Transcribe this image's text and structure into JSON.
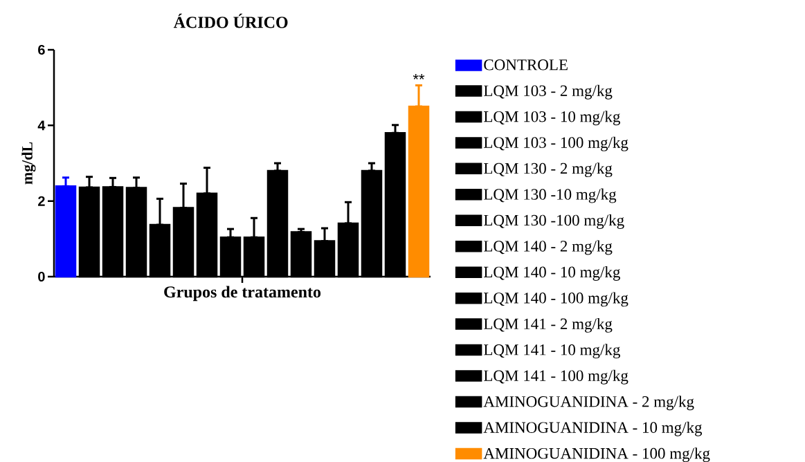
{
  "chart_data": {
    "type": "bar",
    "title": "ÁCIDO ÚRICO",
    "xlabel": "Grupos de tratamento",
    "ylabel": "mg/dL",
    "categories": [
      null
    ],
    "series": [
      {
        "name": "CONTROLE",
        "color": "#0000ff",
        "values": [
          2.39
        ],
        "errors": [
          [
            2.39,
            2.62
          ]
        ]
      },
      {
        "name": "LQM 103 - 2 mg/kg",
        "color": "#000000",
        "values": [
          2.36
        ],
        "errors": [
          [
            2.36,
            2.64
          ]
        ]
      },
      {
        "name": "LQM 103 - 10 mg/kg",
        "color": "#000000",
        "values": [
          2.37
        ],
        "errors": [
          [
            2.37,
            2.61
          ]
        ]
      },
      {
        "name": "LQM 103 - 100 mg/kg",
        "color": "#000000",
        "values": [
          2.35
        ],
        "errors": [
          [
            2.35,
            2.62
          ]
        ]
      },
      {
        "name": "LQM 130 - 2 mg/kg",
        "color": "#000000",
        "values": [
          1.37
        ],
        "errors": [
          [
            1.37,
            2.06
          ]
        ]
      },
      {
        "name": "LQM 130 -10 mg/kg",
        "color": "#000000",
        "values": [
          1.82
        ],
        "errors": [
          [
            1.82,
            2.46
          ]
        ]
      },
      {
        "name": "LQM 130 -100 mg/kg",
        "color": "#000000",
        "values": [
          2.2
        ],
        "errors": [
          [
            2.2,
            2.88
          ]
        ]
      },
      {
        "name": "LQM 140 - 2 mg/kg",
        "color": "#000000",
        "values": [
          1.04
        ],
        "errors": [
          [
            1.04,
            1.26
          ]
        ]
      },
      {
        "name": "LQM 140 - 10 mg/kg",
        "color": "#000000",
        "values": [
          1.04
        ],
        "errors": [
          [
            1.04,
            1.55
          ]
        ]
      },
      {
        "name": "LQM 140 - 100 mg/kg",
        "color": "#000000",
        "values": [
          2.8
        ],
        "errors": [
          [
            2.8,
            3.0
          ]
        ]
      },
      {
        "name": "LQM 141 - 2 mg/kg",
        "color": "#000000",
        "values": [
          1.18
        ],
        "errors": [
          [
            1.18,
            1.26
          ]
        ]
      },
      {
        "name": "LQM 141 - 10 mg/kg",
        "color": "#000000",
        "values": [
          0.94
        ],
        "errors": [
          [
            0.94,
            1.28
          ]
        ]
      },
      {
        "name": "LQM 141 - 100 mg/kg",
        "color": "#000000",
        "values": [
          1.41
        ],
        "errors": [
          [
            1.41,
            1.97
          ]
        ]
      },
      {
        "name": "AMINOGUANIDINA  - 2 mg/kg",
        "color": "#000000",
        "values": [
          2.8
        ],
        "errors": [
          [
            2.8,
            3.0
          ]
        ]
      },
      {
        "name": "AMINOGUANIDINA  - 10 mg/kg",
        "color": "#000000",
        "values": [
          3.8
        ],
        "errors": [
          [
            3.8,
            4.01
          ]
        ]
      },
      {
        "name": "AMINOGUANIDINA  - 100 mg/kg",
        "color": "#ff8c00",
        "values": [
          4.5
        ],
        "errors": [
          [
            4.5,
            5.06
          ]
        ]
      }
    ],
    "annotations": [
      "**"
    ],
    "ylim": [
      0,
      6
    ],
    "yticks": [
      0,
      2,
      4,
      6
    ],
    "legend": "right"
  }
}
